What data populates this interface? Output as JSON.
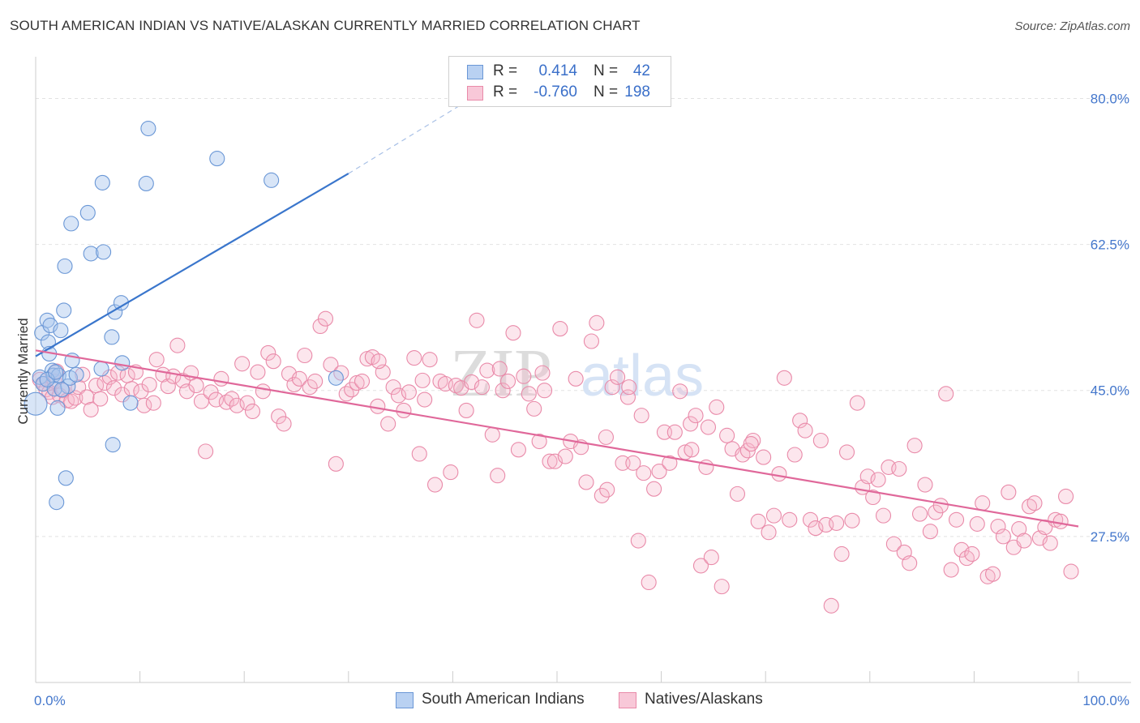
{
  "title": "SOUTH AMERICAN INDIAN VS NATIVE/ALASKAN CURRENTLY MARRIED CORRELATION CHART",
  "source": "Source: ZipAtlas.com",
  "watermark": {
    "zip": "ZIP",
    "atlas": "atlas"
  },
  "legend": {
    "rows": [
      {
        "r_label": "R =",
        "r_value": "0.414",
        "n_label": "N =",
        "n_value": "42"
      },
      {
        "r_label": "R =",
        "r_value": "-0.760",
        "n_label": "N =",
        "n_value": "198"
      }
    ]
  },
  "bottom_legend": {
    "series1": "South American Indians",
    "series2": "Natives/Alaskans"
  },
  "colors": {
    "blue_fill": "#a9c6ee",
    "blue_stroke": "#6a97d6",
    "blue_line": "#3a76cc",
    "pink_fill": "#f5b8cc",
    "pink_stroke": "#e98aa9",
    "pink_line": "#e0689a",
    "grid": "#e2e2e2",
    "tick_text": "#4477cc"
  },
  "chart_data": {
    "type": "scatter",
    "title": "SOUTH AMERICAN INDIAN VS NATIVE/ALASKAN CURRENTLY MARRIED CORRELATION CHART",
    "xlabel": "",
    "ylabel": "Currently Married",
    "xlim": [
      0,
      100
    ],
    "ylim": [
      10,
      85
    ],
    "x_tick_labels": [
      "0.0%",
      "100.0%"
    ],
    "y_ticks": [
      27.5,
      45.0,
      62.5,
      80.0
    ],
    "y_tick_labels": [
      "27.5%",
      "45.0%",
      "62.5%",
      "80.0%"
    ],
    "grid": true,
    "series": [
      {
        "name": "South American Indians",
        "R": 0.414,
        "N": 42,
        "trend": {
          "x0": 0.0,
          "y0": 49.1,
          "x1": 30.0,
          "y1": 71.0,
          "dash_to_x": 41.0,
          "dash_to_y": 79.4
        },
        "points": [
          [
            0.4,
            46.6
          ],
          [
            0.0,
            43.4
          ],
          [
            0.7,
            45.8
          ],
          [
            0.6,
            51.9
          ],
          [
            1.1,
            53.4
          ],
          [
            1.2,
            50.8
          ],
          [
            1.3,
            49.4
          ],
          [
            1.4,
            52.8
          ],
          [
            1.6,
            47.4
          ],
          [
            1.7,
            46.8
          ],
          [
            1.8,
            45.2
          ],
          [
            2.1,
            42.9
          ],
          [
            2.2,
            46.8
          ],
          [
            2.4,
            52.2
          ],
          [
            2.7,
            54.6
          ],
          [
            2.8,
            59.9
          ],
          [
            3.1,
            45.5
          ],
          [
            3.3,
            46.5
          ],
          [
            3.5,
            48.6
          ],
          [
            3.9,
            46.9
          ],
          [
            5.0,
            66.3
          ],
          [
            3.4,
            65.0
          ],
          [
            6.4,
            69.9
          ],
          [
            5.3,
            61.4
          ],
          [
            6.5,
            61.6
          ],
          [
            7.3,
            51.4
          ],
          [
            7.6,
            54.4
          ],
          [
            8.3,
            48.3
          ],
          [
            8.2,
            55.5
          ],
          [
            9.1,
            43.5
          ],
          [
            10.6,
            69.8
          ],
          [
            10.8,
            76.4
          ],
          [
            17.4,
            72.8
          ],
          [
            22.6,
            70.2
          ],
          [
            7.4,
            38.5
          ],
          [
            2.9,
            34.5
          ],
          [
            2.0,
            31.6
          ],
          [
            6.3,
            47.6
          ],
          [
            1.1,
            46.3
          ],
          [
            2.5,
            45.1
          ],
          [
            28.8,
            46.5
          ],
          [
            1.9,
            47.2
          ]
        ]
      },
      {
        "name": "Natives/Alaskans",
        "R": -0.76,
        "N": 198,
        "trend": {
          "x0": 0.0,
          "y0": 49.8,
          "x1": 100.0,
          "y1": 28.7
        },
        "points": [
          [
            0.4,
            46.3
          ],
          [
            0.8,
            45.8
          ],
          [
            1.0,
            45.1
          ],
          [
            1.3,
            44.8
          ],
          [
            1.6,
            44.2
          ],
          [
            1.8,
            46.1
          ],
          [
            2.0,
            47.3
          ],
          [
            2.3,
            44.4
          ],
          [
            2.6,
            45.0
          ],
          [
            3.0,
            43.8
          ],
          [
            3.4,
            43.7
          ],
          [
            3.8,
            44.1
          ],
          [
            4.1,
            45.4
          ],
          [
            4.5,
            46.9
          ],
          [
            4.9,
            44.2
          ],
          [
            5.3,
            42.7
          ],
          [
            5.8,
            45.6
          ],
          [
            6.2,
            44.0
          ],
          [
            6.6,
            45.9
          ],
          [
            7.1,
            46.6
          ],
          [
            7.5,
            45.3
          ],
          [
            7.9,
            47.1
          ],
          [
            8.3,
            44.5
          ],
          [
            8.8,
            46.8
          ],
          [
            9.2,
            45.2
          ],
          [
            9.6,
            47.2
          ],
          [
            10.1,
            44.9
          ],
          [
            10.4,
            43.2
          ],
          [
            10.9,
            45.7
          ],
          [
            11.3,
            43.5
          ],
          [
            11.6,
            48.7
          ],
          [
            12.2,
            46.9
          ],
          [
            12.7,
            45.5
          ],
          [
            13.2,
            46.7
          ],
          [
            13.6,
            50.4
          ],
          [
            14.1,
            46.2
          ],
          [
            14.5,
            44.9
          ],
          [
            14.9,
            47.1
          ],
          [
            15.4,
            45.6
          ],
          [
            15.9,
            43.7
          ],
          [
            16.3,
            37.7
          ],
          [
            16.8,
            44.8
          ],
          [
            17.3,
            43.9
          ],
          [
            17.8,
            46.4
          ],
          [
            18.3,
            43.6
          ],
          [
            18.8,
            44.0
          ],
          [
            19.3,
            43.2
          ],
          [
            19.8,
            48.2
          ],
          [
            20.3,
            43.5
          ],
          [
            20.8,
            42.5
          ],
          [
            21.3,
            47.2
          ],
          [
            21.8,
            44.9
          ],
          [
            22.3,
            49.5
          ],
          [
            22.8,
            48.5
          ],
          [
            23.3,
            41.9
          ],
          [
            23.8,
            41.0
          ],
          [
            24.3,
            47.0
          ],
          [
            24.8,
            45.7
          ],
          [
            25.3,
            46.4
          ],
          [
            25.8,
            49.2
          ],
          [
            26.3,
            45.4
          ],
          [
            26.8,
            46.1
          ],
          [
            27.3,
            52.7
          ],
          [
            27.8,
            53.6
          ],
          [
            28.3,
            48.1
          ],
          [
            28.8,
            36.2
          ],
          [
            29.3,
            47.1
          ],
          [
            29.8,
            44.6
          ],
          [
            30.3,
            45.1
          ],
          [
            30.8,
            45.9
          ],
          [
            31.3,
            46.1
          ],
          [
            31.8,
            48.8
          ],
          [
            32.3,
            49.0
          ],
          [
            32.8,
            43.1
          ],
          [
            33.3,
            47.2
          ],
          [
            33.8,
            41.0
          ],
          [
            34.3,
            45.4
          ],
          [
            34.8,
            44.4
          ],
          [
            35.3,
            42.6
          ],
          [
            35.8,
            44.8
          ],
          [
            36.3,
            48.9
          ],
          [
            36.8,
            37.4
          ],
          [
            37.3,
            43.9
          ],
          [
            37.8,
            48.7
          ],
          [
            38.3,
            33.7
          ],
          [
            38.8,
            46.1
          ],
          [
            39.3,
            45.8
          ],
          [
            39.8,
            35.2
          ],
          [
            40.3,
            45.6
          ],
          [
            40.8,
            45.3
          ],
          [
            41.3,
            42.6
          ],
          [
            41.8,
            46.0
          ],
          [
            42.3,
            53.4
          ],
          [
            42.8,
            45.4
          ],
          [
            43.3,
            47.4
          ],
          [
            43.8,
            39.7
          ],
          [
            44.3,
            34.8
          ],
          [
            44.8,
            45.0
          ],
          [
            45.3,
            46.1
          ],
          [
            45.8,
            51.9
          ],
          [
            46.3,
            37.9
          ],
          [
            46.8,
            46.7
          ],
          [
            47.3,
            44.6
          ],
          [
            47.8,
            42.8
          ],
          [
            48.3,
            38.9
          ],
          [
            48.8,
            45.0
          ],
          [
            49.3,
            36.5
          ],
          [
            49.8,
            36.5
          ],
          [
            50.3,
            52.4
          ],
          [
            50.8,
            37.1
          ],
          [
            51.3,
            38.9
          ],
          [
            51.8,
            46.4
          ],
          [
            52.3,
            38.2
          ],
          [
            52.8,
            34.0
          ],
          [
            53.3,
            50.9
          ],
          [
            53.8,
            53.1
          ],
          [
            54.3,
            32.4
          ],
          [
            54.8,
            33.1
          ],
          [
            55.3,
            45.4
          ],
          [
            55.8,
            46.6
          ],
          [
            56.3,
            36.3
          ],
          [
            56.8,
            44.2
          ],
          [
            57.3,
            36.3
          ],
          [
            57.8,
            27.0
          ],
          [
            58.3,
            35.1
          ],
          [
            58.8,
            22.0
          ],
          [
            59.3,
            33.2
          ],
          [
            59.8,
            35.3
          ],
          [
            60.3,
            40.0
          ],
          [
            60.8,
            36.3
          ],
          [
            61.3,
            40.0
          ],
          [
            61.8,
            44.9
          ],
          [
            62.3,
            37.6
          ],
          [
            62.8,
            41.0
          ],
          [
            63.3,
            42.0
          ],
          [
            63.8,
            24.0
          ],
          [
            64.3,
            35.8
          ],
          [
            64.8,
            25.0
          ],
          [
            65.3,
            43.0
          ],
          [
            65.8,
            21.5
          ],
          [
            66.3,
            39.6
          ],
          [
            66.8,
            38.0
          ],
          [
            67.3,
            32.6
          ],
          [
            67.8,
            37.3
          ],
          [
            68.3,
            37.8
          ],
          [
            68.8,
            39.0
          ],
          [
            69.3,
            29.3
          ],
          [
            69.8,
            37.0
          ],
          [
            70.3,
            28.0
          ],
          [
            70.8,
            30.0
          ],
          [
            71.3,
            35.0
          ],
          [
            71.8,
            46.5
          ],
          [
            72.3,
            29.5
          ],
          [
            72.8,
            37.3
          ],
          [
            73.3,
            41.4
          ],
          [
            73.8,
            40.2
          ],
          [
            74.3,
            29.5
          ],
          [
            74.8,
            28.5
          ],
          [
            75.3,
            39.0
          ],
          [
            75.8,
            28.9
          ],
          [
            76.3,
            19.2
          ],
          [
            76.8,
            29.1
          ],
          [
            77.3,
            25.4
          ],
          [
            77.8,
            37.6
          ],
          [
            78.3,
            29.4
          ],
          [
            78.8,
            43.5
          ],
          [
            79.3,
            33.4
          ],
          [
            79.8,
            34.7
          ],
          [
            80.3,
            32.2
          ],
          [
            80.8,
            34.3
          ],
          [
            81.3,
            30.0
          ],
          [
            81.8,
            35.8
          ],
          [
            82.3,
            26.6
          ],
          [
            82.8,
            35.6
          ],
          [
            83.3,
            25.6
          ],
          [
            83.8,
            24.3
          ],
          [
            84.3,
            38.4
          ],
          [
            84.8,
            30.2
          ],
          [
            85.3,
            33.7
          ],
          [
            85.8,
            28.1
          ],
          [
            86.3,
            30.4
          ],
          [
            86.8,
            31.2
          ],
          [
            87.3,
            44.6
          ],
          [
            87.8,
            23.5
          ],
          [
            88.3,
            29.5
          ],
          [
            88.8,
            25.9
          ],
          [
            89.3,
            24.9
          ],
          [
            89.8,
            25.4
          ],
          [
            90.3,
            29.0
          ],
          [
            90.8,
            31.5
          ],
          [
            91.3,
            22.7
          ],
          [
            91.8,
            23.0
          ],
          [
            92.3,
            28.7
          ],
          [
            92.8,
            27.5
          ],
          [
            93.3,
            32.8
          ],
          [
            93.8,
            26.2
          ],
          [
            94.3,
            28.4
          ],
          [
            94.8,
            27.0
          ],
          [
            95.3,
            31.1
          ],
          [
            95.8,
            31.5
          ],
          [
            96.3,
            27.3
          ],
          [
            96.8,
            28.6
          ],
          [
            97.3,
            26.7
          ],
          [
            97.8,
            29.5
          ],
          [
            98.3,
            29.3
          ],
          [
            98.8,
            32.3
          ],
          [
            99.3,
            23.3
          ],
          [
            44.5,
            47.6
          ],
          [
            48.6,
            47.1
          ],
          [
            37.1,
            46.2
          ],
          [
            64.5,
            40.6
          ],
          [
            32.9,
            48.5
          ],
          [
            68.6,
            38.6
          ],
          [
            56.9,
            45.4
          ],
          [
            58.1,
            42.0
          ],
          [
            54.7,
            39.4
          ],
          [
            62.9,
            37.9
          ]
        ]
      }
    ]
  }
}
